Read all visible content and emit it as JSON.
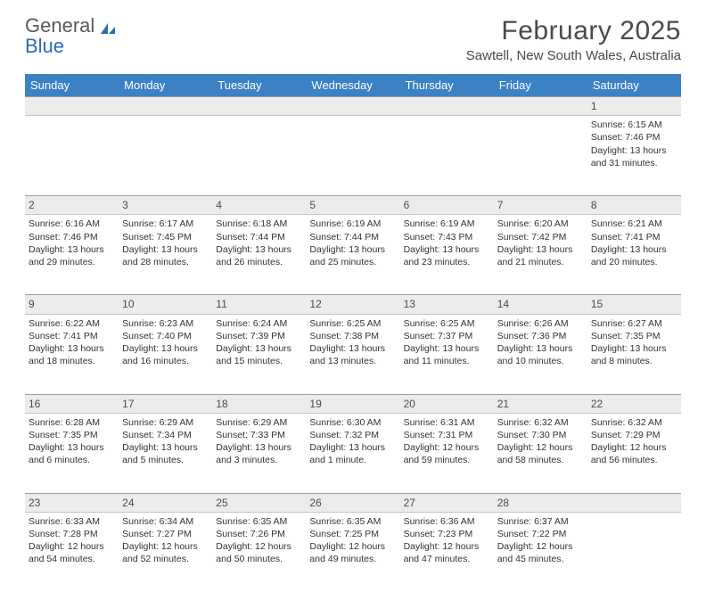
{
  "logo": {
    "line1": "General",
    "line2": "Blue"
  },
  "title": "February 2025",
  "location": "Sawtell, New South Wales, Australia",
  "colors": {
    "header_bg": "#3b82c4",
    "header_text": "#ffffff",
    "daynum_bg": "#ececec",
    "border": "#c5c5c5",
    "text": "#333333",
    "logo_gray": "#5a5a5a",
    "logo_blue": "#2b6cb0"
  },
  "day_names": [
    "Sunday",
    "Monday",
    "Tuesday",
    "Wednesday",
    "Thursday",
    "Friday",
    "Saturday"
  ],
  "layout": {
    "start_day_index": 6,
    "days_in_month": 28
  },
  "days": {
    "1": {
      "sunrise": "6:15 AM",
      "sunset": "7:46 PM",
      "daylight": "13 hours and 31 minutes."
    },
    "2": {
      "sunrise": "6:16 AM",
      "sunset": "7:46 PM",
      "daylight": "13 hours and 29 minutes."
    },
    "3": {
      "sunrise": "6:17 AM",
      "sunset": "7:45 PM",
      "daylight": "13 hours and 28 minutes."
    },
    "4": {
      "sunrise": "6:18 AM",
      "sunset": "7:44 PM",
      "daylight": "13 hours and 26 minutes."
    },
    "5": {
      "sunrise": "6:19 AM",
      "sunset": "7:44 PM",
      "daylight": "13 hours and 25 minutes."
    },
    "6": {
      "sunrise": "6:19 AM",
      "sunset": "7:43 PM",
      "daylight": "13 hours and 23 minutes."
    },
    "7": {
      "sunrise": "6:20 AM",
      "sunset": "7:42 PM",
      "daylight": "13 hours and 21 minutes."
    },
    "8": {
      "sunrise": "6:21 AM",
      "sunset": "7:41 PM",
      "daylight": "13 hours and 20 minutes."
    },
    "9": {
      "sunrise": "6:22 AM",
      "sunset": "7:41 PM",
      "daylight": "13 hours and 18 minutes."
    },
    "10": {
      "sunrise": "6:23 AM",
      "sunset": "7:40 PM",
      "daylight": "13 hours and 16 minutes."
    },
    "11": {
      "sunrise": "6:24 AM",
      "sunset": "7:39 PM",
      "daylight": "13 hours and 15 minutes."
    },
    "12": {
      "sunrise": "6:25 AM",
      "sunset": "7:38 PM",
      "daylight": "13 hours and 13 minutes."
    },
    "13": {
      "sunrise": "6:25 AM",
      "sunset": "7:37 PM",
      "daylight": "13 hours and 11 minutes."
    },
    "14": {
      "sunrise": "6:26 AM",
      "sunset": "7:36 PM",
      "daylight": "13 hours and 10 minutes."
    },
    "15": {
      "sunrise": "6:27 AM",
      "sunset": "7:35 PM",
      "daylight": "13 hours and 8 minutes."
    },
    "16": {
      "sunrise": "6:28 AM",
      "sunset": "7:35 PM",
      "daylight": "13 hours and 6 minutes."
    },
    "17": {
      "sunrise": "6:29 AM",
      "sunset": "7:34 PM",
      "daylight": "13 hours and 5 minutes."
    },
    "18": {
      "sunrise": "6:29 AM",
      "sunset": "7:33 PM",
      "daylight": "13 hours and 3 minutes."
    },
    "19": {
      "sunrise": "6:30 AM",
      "sunset": "7:32 PM",
      "daylight": "13 hours and 1 minute."
    },
    "20": {
      "sunrise": "6:31 AM",
      "sunset": "7:31 PM",
      "daylight": "12 hours and 59 minutes."
    },
    "21": {
      "sunrise": "6:32 AM",
      "sunset": "7:30 PM",
      "daylight": "12 hours and 58 minutes."
    },
    "22": {
      "sunrise": "6:32 AM",
      "sunset": "7:29 PM",
      "daylight": "12 hours and 56 minutes."
    },
    "23": {
      "sunrise": "6:33 AM",
      "sunset": "7:28 PM",
      "daylight": "12 hours and 54 minutes."
    },
    "24": {
      "sunrise": "6:34 AM",
      "sunset": "7:27 PM",
      "daylight": "12 hours and 52 minutes."
    },
    "25": {
      "sunrise": "6:35 AM",
      "sunset": "7:26 PM",
      "daylight": "12 hours and 50 minutes."
    },
    "26": {
      "sunrise": "6:35 AM",
      "sunset": "7:25 PM",
      "daylight": "12 hours and 49 minutes."
    },
    "27": {
      "sunrise": "6:36 AM",
      "sunset": "7:23 PM",
      "daylight": "12 hours and 47 minutes."
    },
    "28": {
      "sunrise": "6:37 AM",
      "sunset": "7:22 PM",
      "daylight": "12 hours and 45 minutes."
    }
  },
  "labels": {
    "sunrise": "Sunrise:",
    "sunset": "Sunset:",
    "daylight": "Daylight:"
  }
}
